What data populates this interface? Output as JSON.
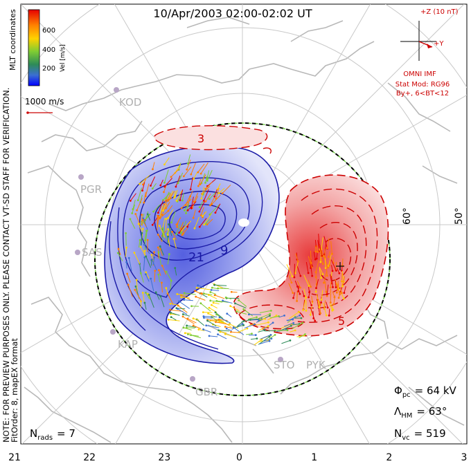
{
  "chart_data": {
    "type": "polar-contour-map",
    "title": "10/Apr/2003 02:00-02:02 UT",
    "coordinate_label": "MLT coordinates",
    "colorbar": {
      "label": "Vel [m/s]",
      "ticks": [
        "600",
        "400",
        "200"
      ],
      "colors": [
        "#e60000",
        "#ff7f00",
        "#ffd200",
        "#7fcc33",
        "#2e8b57",
        "#3b6fd1",
        "#0000ff"
      ]
    },
    "vector_scale": "1000 m/s",
    "imf": {
      "z_label": "+Z (10 nT)",
      "y_label": "+Y",
      "source": "OMNI IMF",
      "model": "Stat Mod: RG96",
      "condition": "By+, 6<BT<12"
    },
    "side_note_1": "NOTE: FOR PREVIEW PURPOSES ONLY. PLEASE CONTACT VT-SD STAFF FOR VERIFICATION.",
    "side_note_2": "FitOrder: 8, mapEX format",
    "mlt_ticks": [
      "21",
      "22",
      "23",
      "0",
      "1",
      "2",
      "3"
    ],
    "latitude_labels": [
      "60°",
      "50°"
    ],
    "contour_labels": [
      "3",
      "21",
      "9",
      "5"
    ],
    "stations": [
      "KOD",
      "PGR",
      "SAS",
      "KAP",
      "GBR",
      "STO",
      "PYK"
    ],
    "stats": {
      "n_rads_label": "N",
      "n_rads_sub": "rads",
      "n_rads_value": "= 7",
      "phi_label": "Φ",
      "phi_sub": "pc",
      "phi_value": "= 64 kV",
      "lambda_label": "Λ",
      "lambda_sub": "HM",
      "lambda_value": "= 63°",
      "nvc_label": "N",
      "nvc_sub": "vc",
      "nvc_value": "= 519"
    },
    "potential_cells": [
      {
        "name": "negative",
        "color": "#5560e0"
      },
      {
        "name": "positive",
        "color": "#e83a3a"
      }
    ]
  }
}
